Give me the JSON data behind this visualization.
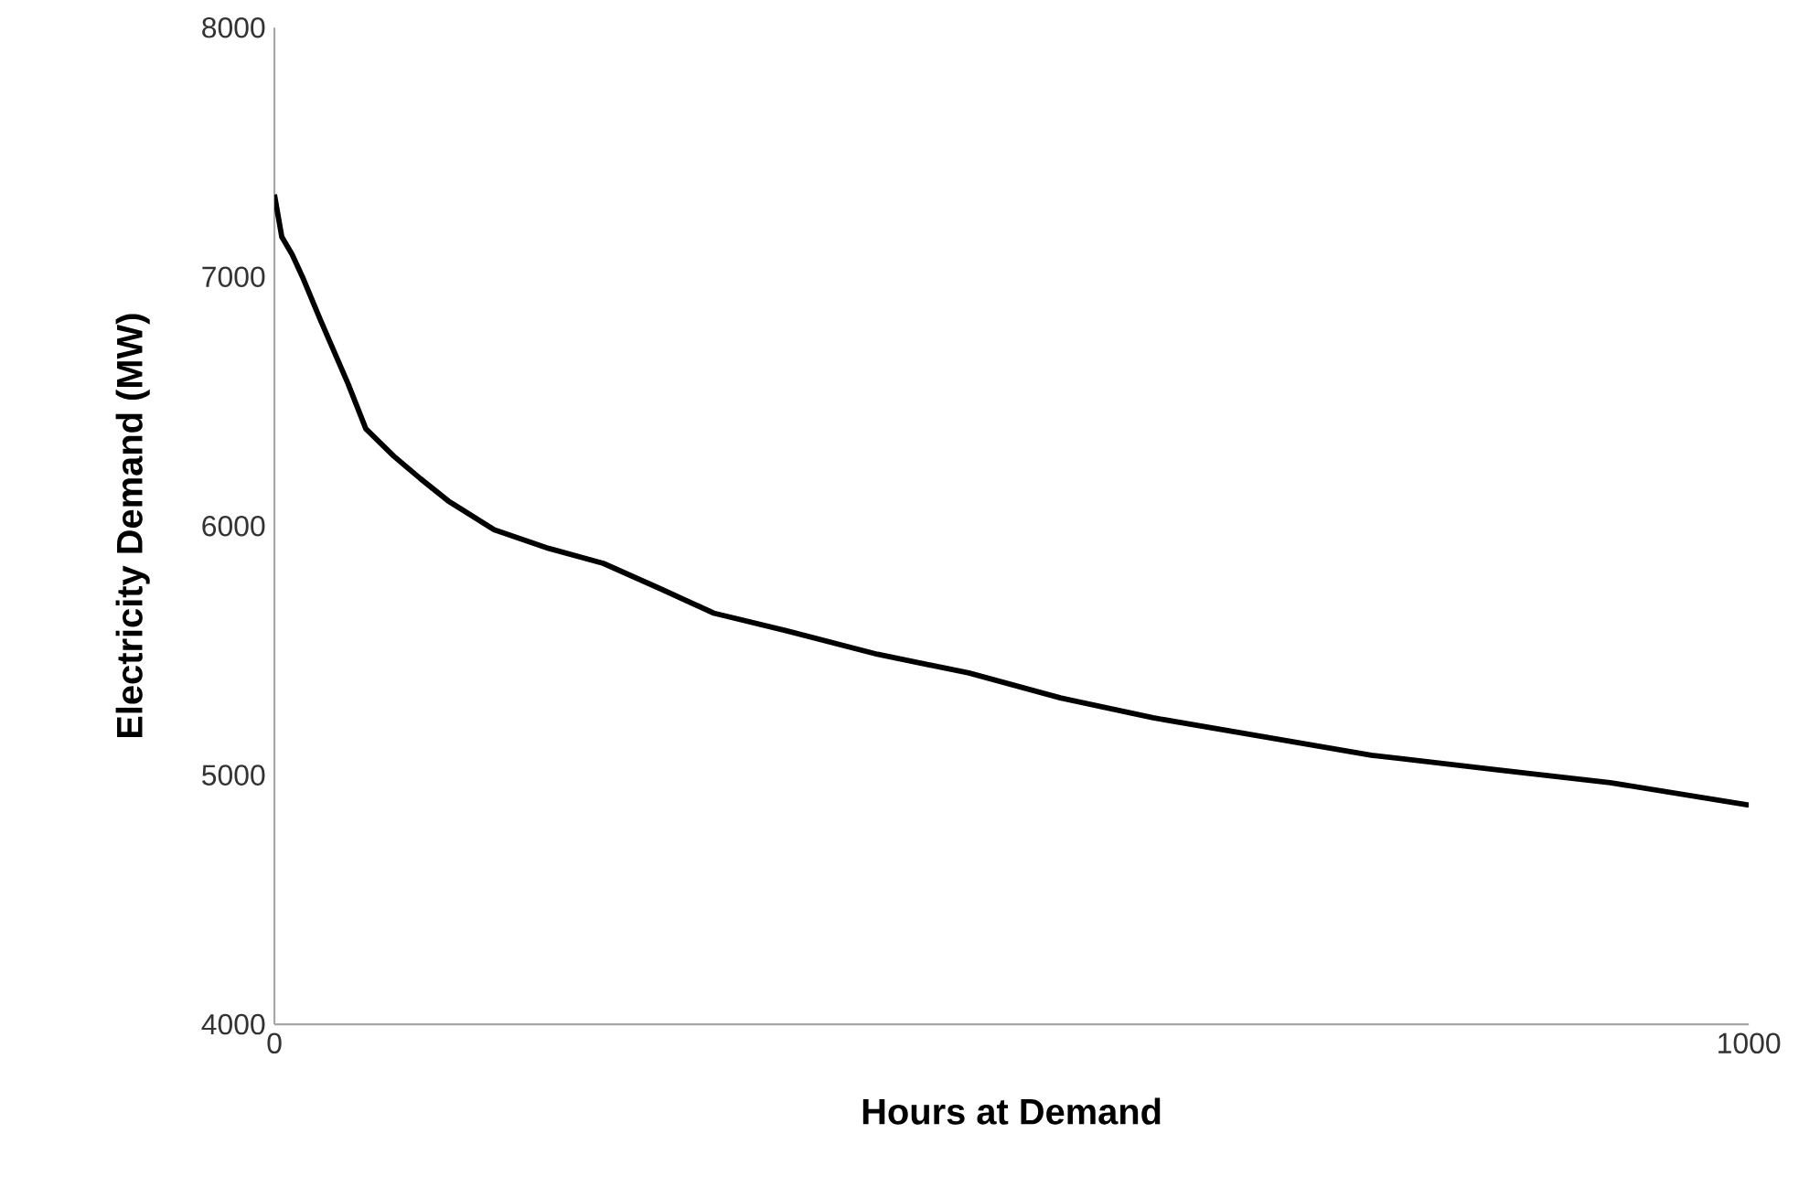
{
  "chart_data": {
    "type": "line",
    "xlabel": "Hours at Demand",
    "ylabel": "Electricity Demand (MW)",
    "x": [
      0,
      5,
      12,
      19,
      31,
      50,
      62,
      81,
      99,
      118,
      149,
      186,
      223,
      261,
      298,
      347,
      409,
      471,
      533,
      596,
      670,
      744,
      831,
      906,
      1000
    ],
    "series": [
      {
        "color": "#000000",
        "values": [
          7330,
          7160,
          7090,
          7000,
          6830,
          6570,
          6390,
          6280,
          6190,
          6100,
          5985,
          5910,
          5850,
          5750,
          5650,
          5580,
          5485,
          5410,
          5310,
          5230,
          5155,
          5080,
          5020,
          4970,
          4880
        ]
      }
    ],
    "xlim": [
      0,
      1000
    ],
    "xticks": [
      0,
      1000
    ],
    "ylim": [
      4000,
      8000
    ],
    "yticks": [
      4000,
      5000,
      6000,
      7000,
      8000
    ],
    "grid": false,
    "marker": "none",
    "line_style": "solid"
  }
}
